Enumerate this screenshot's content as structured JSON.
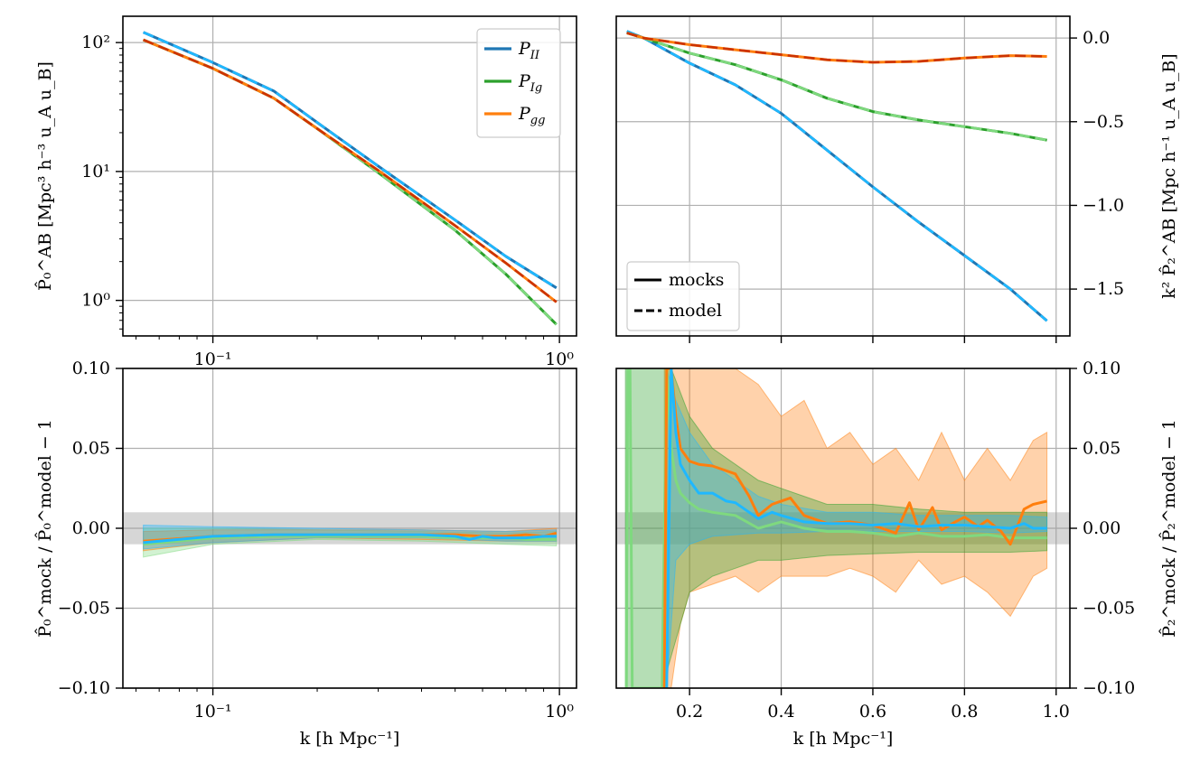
{
  "figure": {
    "legend_series": [
      {
        "label": "P_II",
        "main": "P",
        "sub": "II",
        "color": "#1f77b4"
      },
      {
        "label": "P_Ig",
        "main": "P",
        "sub": "Ig",
        "color": "#2ca02c"
      },
      {
        "label": "P_gg",
        "main": "P",
        "sub": "gg",
        "color": "#ff7f0e"
      }
    ],
    "legend_styles": [
      {
        "label": "mocks",
        "style": "solid"
      },
      {
        "label": "model",
        "style": "dashed"
      }
    ]
  },
  "chart_data": [
    {
      "id": "monopole",
      "type": "line",
      "xscale": "log",
      "yscale": "log",
      "xlim": [
        0.055,
        1.12
      ],
      "ylim": [
        0.53,
        160
      ],
      "grid": true,
      "legend": "top-right",
      "xlabel": "",
      "ylabel": "P̂₀^AB [Mpc³ h⁻³ u_A u_B]",
      "xticks": [
        0.1,
        1.0
      ],
      "xtick_labels": [
        "10⁻¹",
        "10⁰"
      ],
      "yticks": [
        1,
        10,
        100
      ],
      "ytick_labels": [
        "10⁰",
        "10¹",
        "10²"
      ],
      "series": [
        {
          "name": "P_II",
          "style": "mocks",
          "color": "#1f77b4",
          "x": [
            0.063,
            0.1,
            0.15,
            0.2,
            0.3,
            0.5,
            0.7,
            0.98
          ],
          "y": [
            120,
            70,
            42,
            24,
            11,
            4.2,
            2.2,
            1.25
          ]
        },
        {
          "name": "P_II",
          "style": "model",
          "color": "#1fb8ff",
          "x": [
            0.063,
            0.1,
            0.15,
            0.2,
            0.3,
            0.5,
            0.7,
            0.98
          ],
          "y": [
            120,
            70,
            42,
            24,
            11,
            4.2,
            2.2,
            1.25
          ]
        },
        {
          "name": "P_Ig",
          "style": "mocks",
          "color": "#2ca02c",
          "x": [
            0.063,
            0.1,
            0.15,
            0.2,
            0.3,
            0.5,
            0.7,
            0.98
          ],
          "y": [
            105,
            63,
            37,
            21.5,
            9.8,
            3.5,
            1.6,
            0.65
          ]
        },
        {
          "name": "P_Ig",
          "style": "model",
          "color": "#7fd97f",
          "x": [
            0.063,
            0.1,
            0.15,
            0.2,
            0.3,
            0.5,
            0.7,
            0.98
          ],
          "y": [
            105,
            63,
            37,
            21.5,
            9.8,
            3.5,
            1.6,
            0.65
          ]
        },
        {
          "name": "P_gg",
          "style": "mocks",
          "color": "#ff7f0e",
          "x": [
            0.063,
            0.1,
            0.15,
            0.2,
            0.3,
            0.5,
            0.7,
            0.98
          ],
          "y": [
            105,
            63,
            37,
            21.5,
            10.2,
            3.8,
            1.95,
            0.97
          ]
        },
        {
          "name": "P_gg",
          "style": "model",
          "color": "#cc3300",
          "x": [
            0.063,
            0.1,
            0.15,
            0.2,
            0.3,
            0.5,
            0.7,
            0.98
          ],
          "y": [
            105,
            63,
            37,
            21.5,
            10.2,
            3.8,
            1.95,
            0.97
          ]
        }
      ]
    },
    {
      "id": "quadrupole",
      "type": "line",
      "xscale": "linear",
      "yscale": "linear",
      "xlim": [
        0.04,
        1.03
      ],
      "ylim": [
        -1.78,
        0.13
      ],
      "grid": true,
      "legend": "lower-left",
      "xlabel": "",
      "ylabel": "k² P̂₂^AB [Mpc h⁻¹ u_A u_B]",
      "xticks": [
        0.2,
        0.4,
        0.6,
        0.8,
        1.0
      ],
      "xtick_labels": [
        "",
        "",
        "",
        "",
        ""
      ],
      "yticks": [
        0.0,
        -0.5,
        -1.0,
        -1.5
      ],
      "ytick_labels": [
        "0.0",
        "−0.5",
        "−1.0",
        "−1.5"
      ],
      "series": [
        {
          "name": "P_II",
          "style": "mocks",
          "color": "#1f77b4",
          "x": [
            0.063,
            0.1,
            0.2,
            0.3,
            0.4,
            0.5,
            0.6,
            0.7,
            0.8,
            0.9,
            0.98
          ],
          "y": [
            0.04,
            0.0,
            -0.15,
            -0.28,
            -0.45,
            -0.67,
            -0.89,
            -1.1,
            -1.3,
            -1.5,
            -1.69
          ]
        },
        {
          "name": "P_II",
          "style": "model",
          "color": "#1fb8ff",
          "x": [
            0.063,
            0.1,
            0.2,
            0.3,
            0.4,
            0.5,
            0.6,
            0.7,
            0.8,
            0.9,
            0.98
          ],
          "y": [
            0.04,
            0.0,
            -0.15,
            -0.28,
            -0.45,
            -0.67,
            -0.89,
            -1.1,
            -1.3,
            -1.5,
            -1.69
          ]
        },
        {
          "name": "P_Ig",
          "style": "mocks",
          "color": "#2ca02c",
          "x": [
            0.063,
            0.1,
            0.2,
            0.3,
            0.4,
            0.5,
            0.6,
            0.7,
            0.8,
            0.9,
            0.98
          ],
          "y": [
            0.03,
            0.0,
            -0.09,
            -0.16,
            -0.25,
            -0.36,
            -0.44,
            -0.49,
            -0.53,
            -0.57,
            -0.61
          ]
        },
        {
          "name": "P_Ig",
          "style": "model",
          "color": "#7fd97f",
          "x": [
            0.063,
            0.1,
            0.2,
            0.3,
            0.4,
            0.5,
            0.6,
            0.7,
            0.8,
            0.9,
            0.98
          ],
          "y": [
            0.03,
            0.0,
            -0.09,
            -0.16,
            -0.25,
            -0.36,
            -0.44,
            -0.49,
            -0.53,
            -0.57,
            -0.61
          ]
        },
        {
          "name": "P_gg",
          "style": "mocks",
          "color": "#ff7f0e",
          "x": [
            0.063,
            0.1,
            0.2,
            0.3,
            0.4,
            0.5,
            0.6,
            0.7,
            0.8,
            0.9,
            0.98
          ],
          "y": [
            0.03,
            0.0,
            -0.04,
            -0.07,
            -0.1,
            -0.13,
            -0.145,
            -0.14,
            -0.12,
            -0.105,
            -0.11
          ]
        },
        {
          "name": "P_gg",
          "style": "model",
          "color": "#cc3300",
          "x": [
            0.063,
            0.1,
            0.2,
            0.3,
            0.4,
            0.5,
            0.6,
            0.7,
            0.8,
            0.9,
            0.98
          ],
          "y": [
            0.03,
            0.0,
            -0.04,
            -0.07,
            -0.1,
            -0.13,
            -0.145,
            -0.14,
            -0.12,
            -0.105,
            -0.11
          ]
        }
      ]
    },
    {
      "id": "monopole-ratio",
      "type": "line",
      "xscale": "log",
      "yscale": "linear",
      "xlim": [
        0.055,
        1.12
      ],
      "ylim": [
        -0.1,
        0.1
      ],
      "grid": true,
      "xlabel": "k [h Mpc⁻¹]",
      "ylabel": "P̂₀^mock / P̂₀^model − 1",
      "xticks": [
        0.1,
        1.0
      ],
      "xtick_labels": [
        "10⁻¹",
        "10⁰"
      ],
      "yticks": [
        0.1,
        0.05,
        0.0,
        -0.05,
        -0.1
      ],
      "ytick_labels": [
        "0.10",
        "0.05",
        "0.00",
        "−0.05",
        "−0.10"
      ],
      "reference_band": [
        -0.01,
        0.01
      ],
      "bands": [
        {
          "color": "#7fd97f",
          "x": [
            0.063,
            0.1,
            0.2,
            0.4,
            0.7,
            0.98
          ],
          "lo": [
            -0.018,
            -0.01,
            -0.007,
            -0.008,
            -0.01,
            -0.011
          ],
          "hi": [
            0.0,
            0.0,
            -0.001,
            -0.002,
            -0.003,
            -0.002
          ]
        },
        {
          "color": "#ff7f0e",
          "x": [
            0.063,
            0.1,
            0.2,
            0.4,
            0.7,
            0.98
          ],
          "lo": [
            -0.014,
            -0.009,
            -0.006,
            -0.007,
            -0.008,
            -0.008
          ],
          "hi": [
            -0.002,
            -0.001,
            -0.001,
            -0.001,
            -0.002,
            0.0
          ]
        },
        {
          "color": "#1fb8ff",
          "x": [
            0.063,
            0.1,
            0.2,
            0.4,
            0.7,
            0.98
          ],
          "lo": [
            -0.013,
            -0.009,
            -0.006,
            -0.006,
            -0.008,
            -0.008
          ],
          "hi": [
            0.002,
            0.001,
            0.0,
            -0.001,
            -0.002,
            -0.001
          ]
        }
      ],
      "series": [
        {
          "name": "P_Ig",
          "color": "#7fd97f",
          "x": [
            0.063,
            0.1,
            0.15,
            0.2,
            0.3,
            0.4,
            0.5,
            0.6,
            0.7,
            0.8,
            0.9,
            0.98
          ],
          "y": [
            -0.01,
            -0.006,
            -0.005,
            -0.005,
            -0.005,
            -0.005,
            -0.006,
            -0.006,
            -0.006,
            -0.007,
            -0.007,
            -0.007
          ]
        },
        {
          "name": "P_gg",
          "color": "#ff7f0e",
          "x": [
            0.063,
            0.1,
            0.15,
            0.2,
            0.3,
            0.4,
            0.5,
            0.6,
            0.7,
            0.8,
            0.9,
            0.98
          ],
          "y": [
            -0.008,
            -0.005,
            -0.004,
            -0.004,
            -0.004,
            -0.004,
            -0.004,
            -0.005,
            -0.005,
            -0.004,
            -0.005,
            -0.003
          ]
        },
        {
          "name": "P_II",
          "color": "#1fb8ff",
          "x": [
            0.063,
            0.1,
            0.15,
            0.2,
            0.3,
            0.4,
            0.5,
            0.55,
            0.6,
            0.65,
            0.7,
            0.8,
            0.9,
            0.98
          ],
          "y": [
            -0.009,
            -0.005,
            -0.004,
            -0.004,
            -0.004,
            -0.004,
            -0.005,
            -0.007,
            -0.005,
            -0.006,
            -0.006,
            -0.006,
            -0.005,
            -0.005
          ]
        }
      ]
    },
    {
      "id": "quadrupole-ratio",
      "type": "line",
      "xscale": "linear",
      "yscale": "linear",
      "xlim": [
        0.04,
        1.03
      ],
      "ylim": [
        -0.1,
        0.1
      ],
      "grid": true,
      "xlabel": "k [h Mpc⁻¹]",
      "ylabel": "P̂₂^mock / P̂₂^model − 1",
      "xticks": [
        0.2,
        0.4,
        0.6,
        0.8,
        1.0
      ],
      "xtick_labels": [
        "0.2",
        "0.4",
        "0.6",
        "0.8",
        "1.0"
      ],
      "yticks": [
        0.1,
        0.05,
        0.0,
        -0.05,
        -0.1
      ],
      "ytick_labels": [
        "0.10",
        "0.05",
        "0.00",
        "−0.05",
        "−0.10"
      ],
      "reference_band": [
        -0.01,
        0.01
      ],
      "bands": [
        {
          "color": "#ff7f0e",
          "x": [
            0.145,
            0.16,
            0.18,
            0.2,
            0.25,
            0.3,
            0.35,
            0.4,
            0.45,
            0.5,
            0.55,
            0.6,
            0.65,
            0.7,
            0.75,
            0.8,
            0.85,
            0.9,
            0.95,
            0.98
          ],
          "lo": [
            -0.1,
            -0.1,
            -0.06,
            -0.04,
            -0.035,
            -0.03,
            -0.04,
            -0.03,
            -0.03,
            -0.03,
            -0.025,
            -0.03,
            -0.04,
            -0.02,
            -0.035,
            -0.03,
            -0.04,
            -0.055,
            -0.03,
            -0.025
          ],
          "hi": [
            0.1,
            0.1,
            0.1,
            0.1,
            0.1,
            0.1,
            0.09,
            0.07,
            0.08,
            0.05,
            0.06,
            0.04,
            0.05,
            0.03,
            0.06,
            0.03,
            0.05,
            0.03,
            0.055,
            0.06
          ]
        },
        {
          "color": "#2ca02c",
          "x": [
            0.06,
            0.1,
            0.14,
            0.16,
            0.2,
            0.25,
            0.3,
            0.35,
            0.4,
            0.5,
            0.6,
            0.7,
            0.8,
            0.9,
            0.98
          ],
          "lo": [
            -0.1,
            -0.1,
            -0.1,
            -0.08,
            -0.04,
            -0.03,
            -0.025,
            -0.02,
            -0.02,
            -0.017,
            -0.016,
            -0.015,
            -0.015,
            -0.015,
            -0.014
          ],
          "hi": [
            0.1,
            0.1,
            0.1,
            0.1,
            0.07,
            0.05,
            0.04,
            0.03,
            0.025,
            0.015,
            0.015,
            0.012,
            0.01,
            0.01,
            0.01
          ]
        },
        {
          "color": "#1fb8ff",
          "x": [
            0.15,
            0.17,
            0.2,
            0.25,
            0.3,
            0.35,
            0.4,
            0.5,
            0.6,
            0.7,
            0.8,
            0.9,
            0.98
          ],
          "lo": [
            -0.1,
            -0.02,
            -0.01,
            -0.005,
            -0.004,
            -0.003,
            -0.003,
            -0.002,
            -0.002,
            -0.002,
            -0.002,
            -0.003,
            -0.002
          ],
          "hi": [
            0.1,
            0.08,
            0.06,
            0.04,
            0.03,
            0.02,
            0.015,
            0.01,
            0.01,
            0.008,
            0.008,
            0.008,
            0.007
          ]
        }
      ],
      "series": [
        {
          "name": "P_Ig",
          "color": "#7fd97f",
          "x": [
            0.062,
            0.065,
            0.07,
            0.075,
            0.1,
            0.12,
            0.14,
            0.15,
            0.16,
            0.17,
            0.18,
            0.2,
            0.22,
            0.25,
            0.3,
            0.35,
            0.4,
            0.45,
            0.5,
            0.55,
            0.6,
            0.65,
            0.7,
            0.75,
            0.8,
            0.85,
            0.9,
            0.95,
            0.98
          ],
          "y": [
            -0.1,
            0.1,
            0.1,
            -0.1,
            -0.1,
            -0.1,
            -0.1,
            0.1,
            0.05,
            0.03,
            0.022,
            0.016,
            0.012,
            0.01,
            0.008,
            0.0,
            0.004,
            0.0,
            -0.002,
            -0.002,
            -0.003,
            -0.005,
            -0.003,
            -0.005,
            -0.005,
            -0.004,
            -0.006,
            -0.006,
            -0.006
          ]
        },
        {
          "name": "P_gg",
          "color": "#ff7f0e",
          "x": [
            0.145,
            0.15,
            0.16,
            0.17,
            0.18,
            0.2,
            0.22,
            0.25,
            0.3,
            0.33,
            0.35,
            0.38,
            0.4,
            0.42,
            0.45,
            0.5,
            0.55,
            0.6,
            0.65,
            0.68,
            0.7,
            0.73,
            0.75,
            0.78,
            0.8,
            0.83,
            0.85,
            0.88,
            0.9,
            0.93,
            0.95,
            0.98
          ],
          "y": [
            -0.1,
            0.1,
            0.1,
            0.07,
            0.05,
            0.042,
            0.04,
            0.039,
            0.034,
            0.02,
            0.008,
            0.015,
            0.017,
            0.019,
            0.008,
            0.003,
            0.004,
            0.002,
            -0.003,
            0.016,
            -0.001,
            0.013,
            -0.001,
            0.004,
            0.007,
            0.001,
            0.005,
            -0.002,
            -0.01,
            0.012,
            0.015,
            0.017
          ]
        },
        {
          "name": "P_II",
          "color": "#1fb8ff",
          "x": [
            0.15,
            0.16,
            0.17,
            0.18,
            0.2,
            0.22,
            0.25,
            0.28,
            0.3,
            0.33,
            0.35,
            0.38,
            0.4,
            0.45,
            0.5,
            0.55,
            0.6,
            0.65,
            0.7,
            0.75,
            0.8,
            0.85,
            0.9,
            0.93,
            0.95,
            0.98
          ],
          "y": [
            -0.1,
            0.1,
            0.06,
            0.04,
            0.03,
            0.022,
            0.022,
            0.017,
            0.016,
            0.01,
            0.006,
            0.01,
            0.008,
            0.004,
            0.003,
            0.003,
            0.002,
            0.003,
            0.001,
            0.002,
            0.002,
            0.001,
            0.0,
            0.003,
            0.0,
            0.0
          ]
        }
      ]
    }
  ]
}
